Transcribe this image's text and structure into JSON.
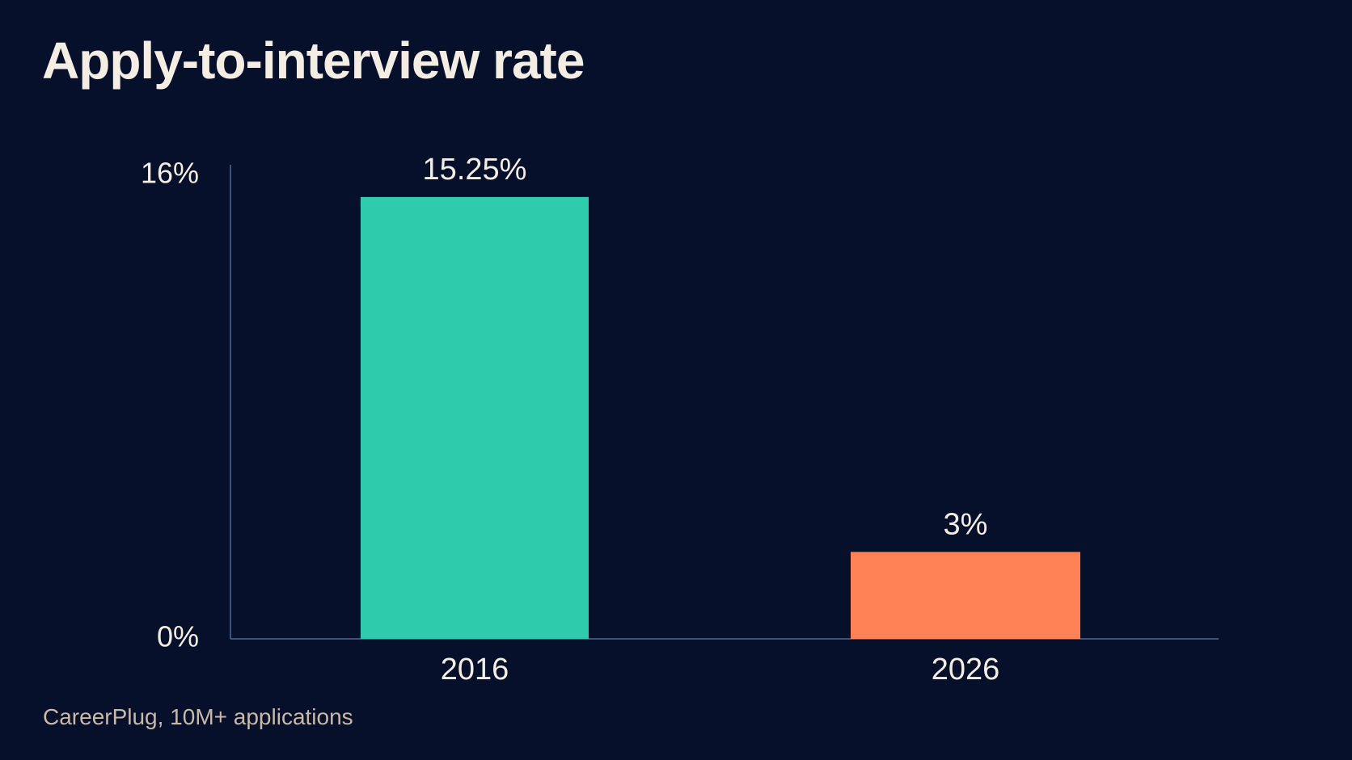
{
  "chart_data": {
    "type": "bar",
    "title": "Apply-to-interview rate",
    "categories": [
      "2016",
      "2026"
    ],
    "values": [
      15.25,
      3
    ],
    "value_labels": [
      "15.25%",
      "3%"
    ],
    "ylim": [
      0,
      16
    ],
    "y_ticks": [
      {
        "value": 0,
        "label": "0%"
      },
      {
        "value": 16,
        "label": "16%"
      }
    ],
    "colors": [
      "#2ecbad",
      "#ff8257"
    ],
    "axis_color": "#3f5376",
    "grid": false,
    "xlabel": "",
    "ylabel": ""
  },
  "source": "CareerPlug, 10M+ applications"
}
